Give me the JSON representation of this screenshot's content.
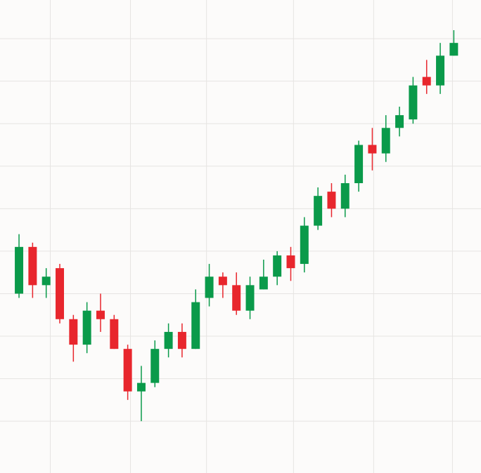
{
  "chart_data": {
    "type": "candlestick",
    "x": [
      0,
      1,
      2,
      3,
      4,
      5,
      6,
      7,
      8,
      9,
      10,
      11,
      12,
      13,
      14,
      15,
      16,
      17,
      18,
      19,
      20,
      21,
      22,
      23,
      24,
      25,
      26,
      27,
      28,
      29,
      30,
      31,
      32
    ],
    "open": [
      13.0,
      14.1,
      13.2,
      13.6,
      12.4,
      11.8,
      12.6,
      12.4,
      11.7,
      10.7,
      10.9,
      11.7,
      12.1,
      11.7,
      12.9,
      13.4,
      13.2,
      12.6,
      13.1,
      13.4,
      13.9,
      13.7,
      14.6,
      15.4,
      15.0,
      15.6,
      16.5,
      16.3,
      16.9,
      17.1,
      18.1,
      17.9,
      18.6
    ],
    "high": [
      14.4,
      14.2,
      13.6,
      13.7,
      12.5,
      12.8,
      13.0,
      12.5,
      11.8,
      11.3,
      11.9,
      12.3,
      12.3,
      13.1,
      13.7,
      13.5,
      13.5,
      13.4,
      13.8,
      14.0,
      14.1,
      14.8,
      15.5,
      15.6,
      15.8,
      16.6,
      16.9,
      17.2,
      17.4,
      18.1,
      18.5,
      18.9,
      19.2
    ],
    "low": [
      12.9,
      12.9,
      12.9,
      12.3,
      11.4,
      11.6,
      12.1,
      11.7,
      10.5,
      10.0,
      10.8,
      11.5,
      11.5,
      11.7,
      12.7,
      12.9,
      12.5,
      12.4,
      13.1,
      13.2,
      13.3,
      13.5,
      14.5,
      14.8,
      14.8,
      15.4,
      15.9,
      16.1,
      16.7,
      17.0,
      17.7,
      17.7,
      18.6
    ],
    "close": [
      14.1,
      13.2,
      13.4,
      12.4,
      11.8,
      12.6,
      12.4,
      11.7,
      10.7,
      10.9,
      11.7,
      12.1,
      11.7,
      12.8,
      13.4,
      13.2,
      12.6,
      13.2,
      13.4,
      13.9,
      13.6,
      14.6,
      15.3,
      15.0,
      15.6,
      16.5,
      16.3,
      16.9,
      17.2,
      17.9,
      17.9,
      18.6,
      18.9
    ],
    "up_color": "#0a9a4a",
    "down_color": "#e8262d",
    "xlim": [
      -1.4,
      34.0
    ],
    "xticks": [
      2.3,
      8.2,
      13.8,
      20.2,
      26.1,
      31.9
    ],
    "ylim": [
      8.78,
      19.91
    ],
    "yticks": [
      10,
      11,
      12,
      13,
      14,
      15,
      16,
      17,
      18,
      19
    ],
    "grid": true
  }
}
